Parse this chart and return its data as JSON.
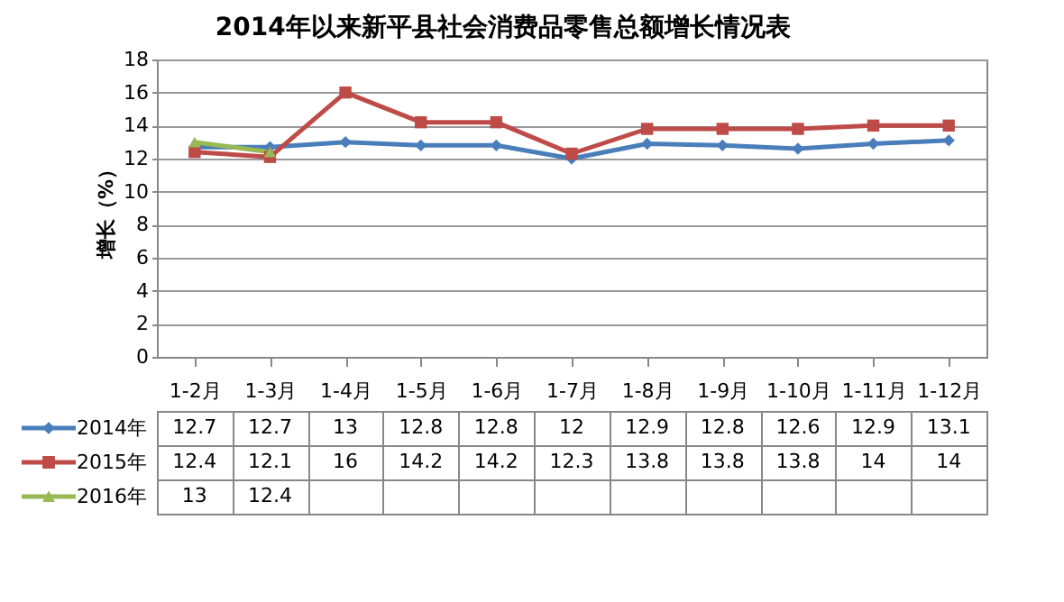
{
  "chart_data": {
    "type": "line",
    "title": "2014年以来新平县社会消费品零售总额增长情况表",
    "ylabel": "增长（%）",
    "categories": [
      "1-2月",
      "1-3月",
      "1-4月",
      "1-5月",
      "1-6月",
      "1-7月",
      "1-8月",
      "1-9月",
      "1-10月",
      "1-11月",
      "1-12月"
    ],
    "series": [
      {
        "name": "2014年",
        "color": "#4a7ebb",
        "marker": "diamond",
        "values": [
          12.7,
          12.7,
          13,
          12.8,
          12.8,
          12,
          12.9,
          12.8,
          12.6,
          12.9,
          13.1
        ]
      },
      {
        "name": "2015年",
        "color": "#be4b48",
        "marker": "square",
        "values": [
          12.4,
          12.1,
          16,
          14.2,
          14.2,
          12.3,
          13.8,
          13.8,
          13.8,
          14,
          14
        ]
      },
      {
        "name": "2016年",
        "color": "#98b954",
        "marker": "triangle",
        "values": [
          13,
          12.4,
          null,
          null,
          null,
          null,
          null,
          null,
          null,
          null,
          null
        ]
      }
    ],
    "ylim": [
      0,
      18
    ],
    "yticks": [
      0,
      2,
      4,
      6,
      8,
      10,
      12,
      14,
      16,
      18
    ],
    "grid": "y",
    "data_labels": true,
    "legend": "bottom left"
  }
}
